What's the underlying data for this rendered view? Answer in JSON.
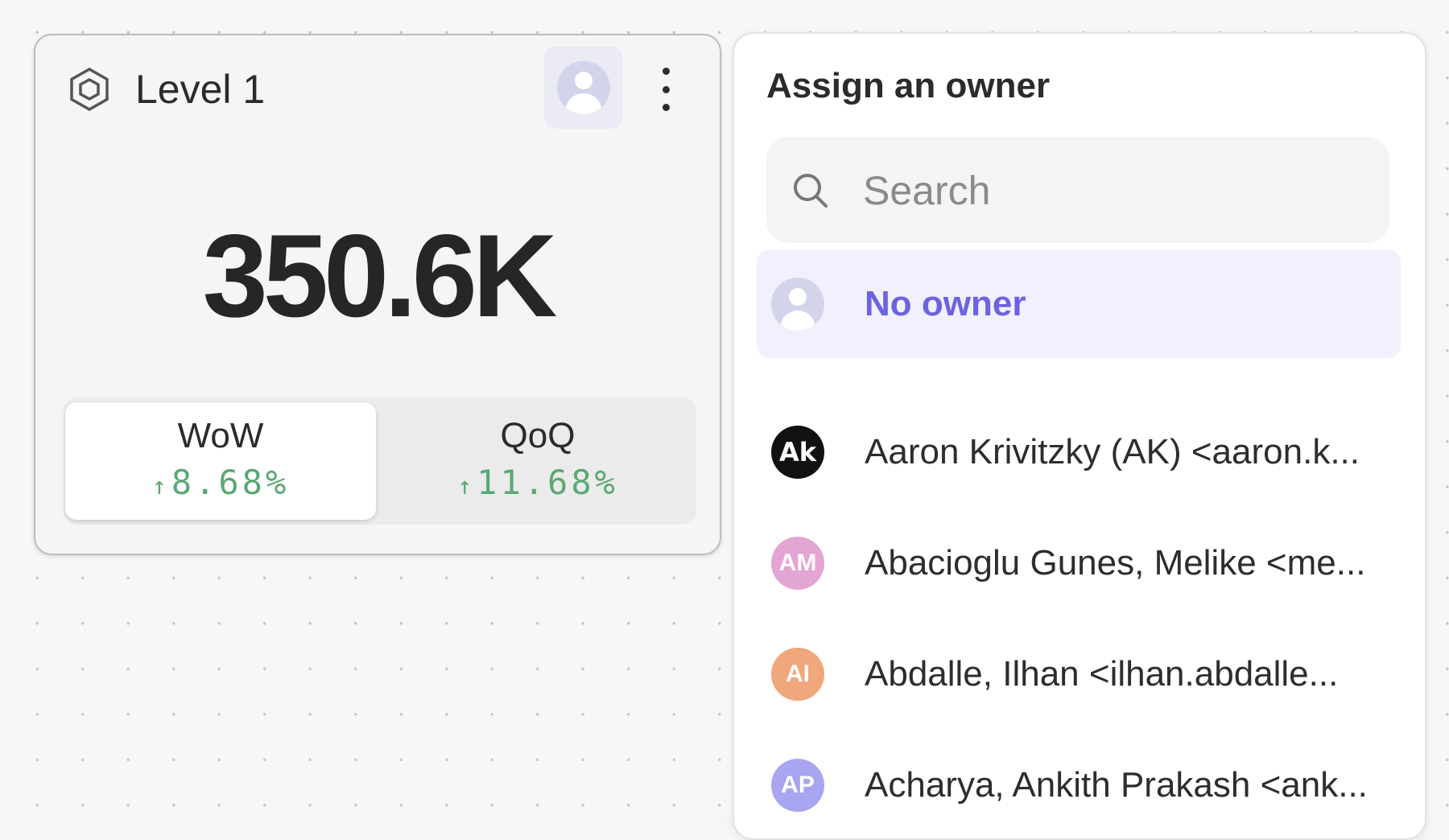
{
  "card": {
    "title": "Level 1",
    "icon": "hexagon-icon",
    "value": "350.6K",
    "comparisons": [
      {
        "label": "WoW",
        "value": "8.68%",
        "direction": "up",
        "active": true
      },
      {
        "label": "QoQ",
        "value": "11.68%",
        "direction": "up",
        "active": false
      }
    ],
    "arrow": "↑",
    "positive_color": "#5aa874"
  },
  "panel": {
    "title": "Assign an owner",
    "search_placeholder": "Search",
    "options": [
      {
        "label": "No owner",
        "initials": "",
        "color": "#d3d4ea",
        "selected": true
      },
      {
        "label": "Aaron Krivitzky (AK) <aaron.k...",
        "initials": "Ak",
        "color": "#111111",
        "selected": false
      },
      {
        "label": "Abacioglu Gunes, Melike <me...",
        "initials": "AM",
        "color": "#e2a5d4",
        "selected": false
      },
      {
        "label": "Abdalle, Ilhan <ilhan.abdalle...",
        "initials": "AI",
        "color": "#f0a77c",
        "selected": false
      },
      {
        "label": "Acharya, Ankith Prakash <ank...",
        "initials": "AP",
        "color": "#aaa5f0",
        "selected": false
      }
    ],
    "accent_color": "#6b63e0"
  }
}
